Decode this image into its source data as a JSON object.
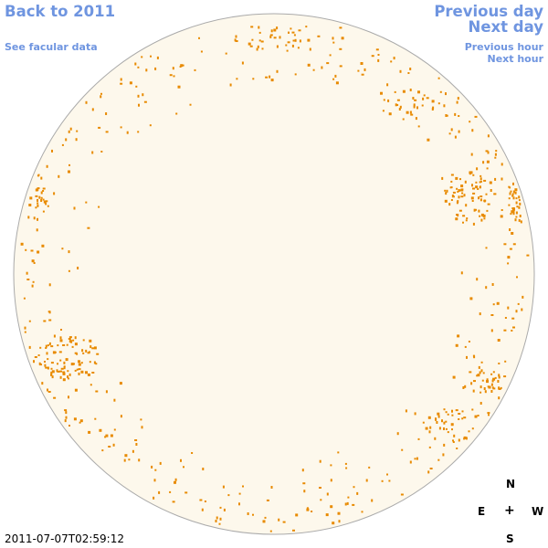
{
  "nav": {
    "back_label": "Back to 2011",
    "facular_label": "See facular data",
    "previous_day_label": "Previous day",
    "next_day_label": "Next day",
    "previous_hour_label": "Previous hour",
    "next_hour_label": "Next hour"
  },
  "compass": {
    "north": "N",
    "east": "E",
    "center": "+",
    "west": "W",
    "south": "S"
  },
  "timestamp": "2011-07-07T02:59:12",
  "colors": {
    "link": "#6f95e0",
    "disk_fill": "#fdf8ec",
    "disk_border": "#aaaaaa",
    "facula": "#e88a00"
  }
}
